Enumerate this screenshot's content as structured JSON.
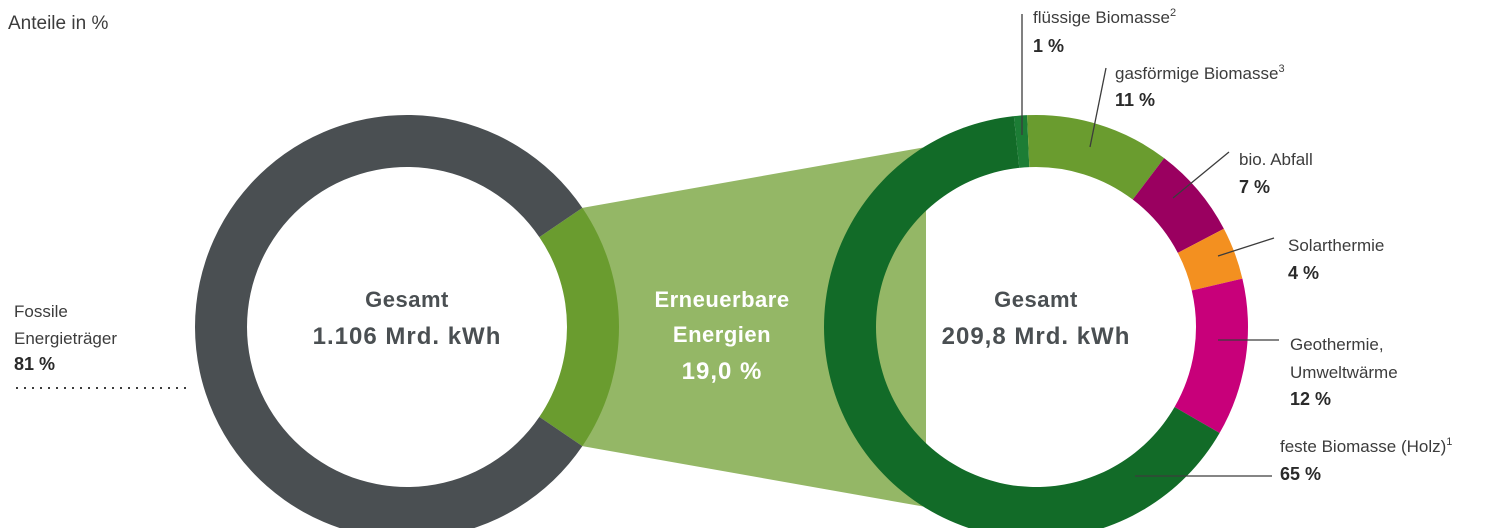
{
  "chart_data": [
    {
      "type": "pie",
      "variant": "donut",
      "subtitle": "Anteile in %",
      "center_title": "Gesamt",
      "center_value": "1.106 Mrd. kWh",
      "slices": [
        {
          "name": "Fossile Energieträger",
          "label_lines": [
            "Fossile",
            "Energieträger"
          ],
          "value": 81,
          "value_text": "81 %",
          "color": "#4a4f52"
        },
        {
          "name": "Erneuerbare Energien",
          "label_lines": [
            "Erneuerbare",
            "Energien"
          ],
          "value": 19.0,
          "value_text": "19,0 %",
          "color": "#6a9c2f"
        }
      ]
    },
    {
      "type": "pie",
      "variant": "donut",
      "center_title": "Gesamt",
      "center_value": "209,8 Mrd. kWh",
      "slices": [
        {
          "name": "flüssige Biomasse",
          "sup": "2",
          "value": 1,
          "value_text": "1 %",
          "color": "#1c7d35"
        },
        {
          "name": "gasförmige Biomasse",
          "sup": "3",
          "value": 11,
          "value_text": "11 %",
          "color": "#6a9c2f"
        },
        {
          "name": "bio. Abfall",
          "sup": "",
          "value": 7,
          "value_text": "7 %",
          "color": "#9a0060"
        },
        {
          "name": "Solarthermie",
          "sup": "",
          "value": 4,
          "value_text": "4 %",
          "color": "#f39020"
        },
        {
          "name": "Geothermie, Umweltwärme",
          "label_lines": [
            "Geothermie,",
            "Umweltwärme"
          ],
          "sup": "",
          "value": 12,
          "value_text": "12 %",
          "color": "#c8007a"
        },
        {
          "name": "feste Biomasse (Holz)",
          "sup": "1",
          "value": 65,
          "value_text": "65 %",
          "color": "#126b28"
        }
      ]
    }
  ],
  "colors": {
    "connector": "#94b766"
  }
}
